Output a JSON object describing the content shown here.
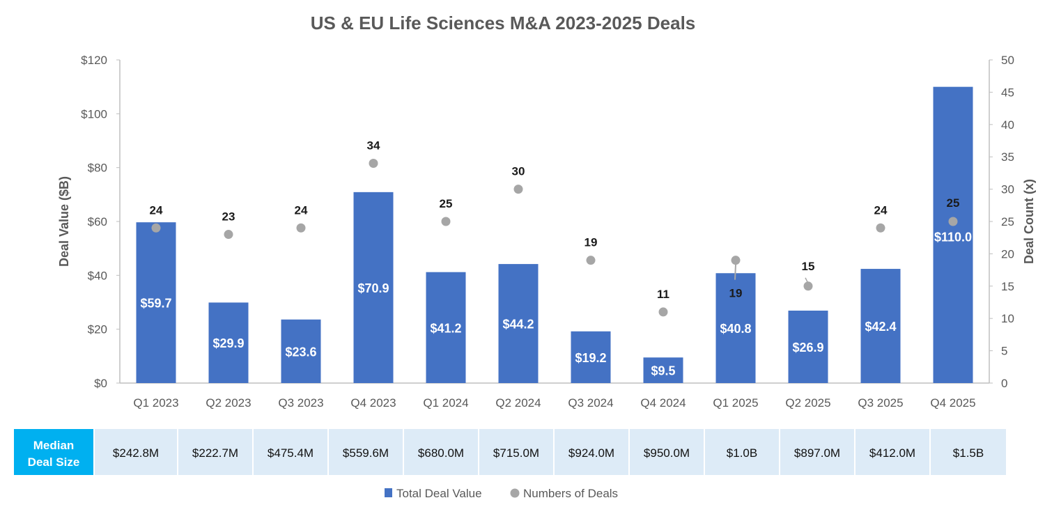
{
  "chart_data": {
    "type": "bar",
    "title": "US & EU Life Sciences M&A 2023-2025 Deals",
    "categories": [
      "Q1 2023",
      "Q2 2023",
      "Q3 2023",
      "Q4 2023",
      "Q1 2024",
      "Q2 2024",
      "Q3 2024",
      "Q4 2024",
      "Q1 2025",
      "Q2 2025",
      "Q3 2025",
      "Q4 2025"
    ],
    "series": [
      {
        "name": "Total Deal Value",
        "axis": "left",
        "kind": "bar",
        "values": [
          59.7,
          29.9,
          23.6,
          70.9,
          41.2,
          44.2,
          19.2,
          9.5,
          40.8,
          26.9,
          42.4,
          110.0
        ],
        "labels": [
          "$59.7",
          "$29.9",
          "$23.6",
          "$70.9",
          "$41.2",
          "$44.2",
          "$19.2",
          "$9.5",
          "$40.8",
          "$26.9",
          "$42.4",
          "$110.0"
        ]
      },
      {
        "name": "Numbers of Deals",
        "axis": "right",
        "kind": "scatter",
        "values": [
          24,
          23,
          24,
          34,
          25,
          30,
          19,
          11,
          19,
          15,
          24,
          25
        ],
        "labels": [
          "24",
          "23",
          "24",
          "34",
          "25",
          "30",
          "19",
          "11",
          "19",
          "15",
          "24",
          "25"
        ]
      }
    ],
    "ylabel": "Deal Value ($B)",
    "ylim": [
      0,
      120
    ],
    "yticks": [
      "$0",
      "$20",
      "$40",
      "$60",
      "$80",
      "$100",
      "$120"
    ],
    "y2label": "Deal Count (x)",
    "y2lim": [
      0,
      50
    ],
    "y2ticks": [
      "0",
      "5",
      "10",
      "15",
      "20",
      "25",
      "30",
      "35",
      "40",
      "45",
      "50"
    ],
    "grid": false,
    "legend_position": "bottom",
    "median_table": {
      "header": [
        "Median",
        "Deal Size"
      ],
      "values": [
        "$242.8M",
        "$222.7M",
        "$475.4M",
        "$559.6M",
        "$680.0M",
        "$715.0M",
        "$924.0M",
        "$950.0M",
        "$1.0B",
        "$897.0M",
        "$412.0M",
        "$1.5B"
      ]
    }
  },
  "colors": {
    "bar": "#4472c4",
    "dot": "#a6a6a6",
    "axis": "#bfbfbf",
    "table_header": "#00b0f0",
    "table_cell": "#ddebf7"
  }
}
